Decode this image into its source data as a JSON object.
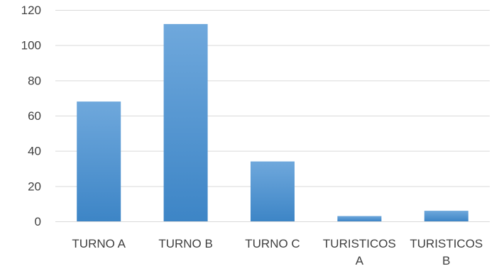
{
  "chart_data": {
    "type": "bar",
    "title": "",
    "xlabel": "",
    "ylabel": "",
    "categories": [
      "TURNO A",
      "TURNO B",
      "TURNO C",
      "TURISTICOS A",
      "TURISTICOS B"
    ],
    "category_lines": [
      [
        "TURNO A"
      ],
      [
        "TURNO B"
      ],
      [
        "TURNO C"
      ],
      [
        "TURISTICOS",
        "A"
      ],
      [
        "TURISTICOS",
        "B"
      ]
    ],
    "values": [
      68,
      112,
      34,
      3,
      6
    ],
    "ylim": [
      0,
      120
    ],
    "yticks": [
      "0",
      "20",
      "40",
      "60",
      "80",
      "100",
      "120"
    ],
    "grid": true,
    "legend": "none",
    "colors": {
      "bar_top": "#6fa8dc",
      "bar_bottom": "#3d85c6",
      "grid": "#d9d9d9",
      "text": "#404040"
    }
  }
}
